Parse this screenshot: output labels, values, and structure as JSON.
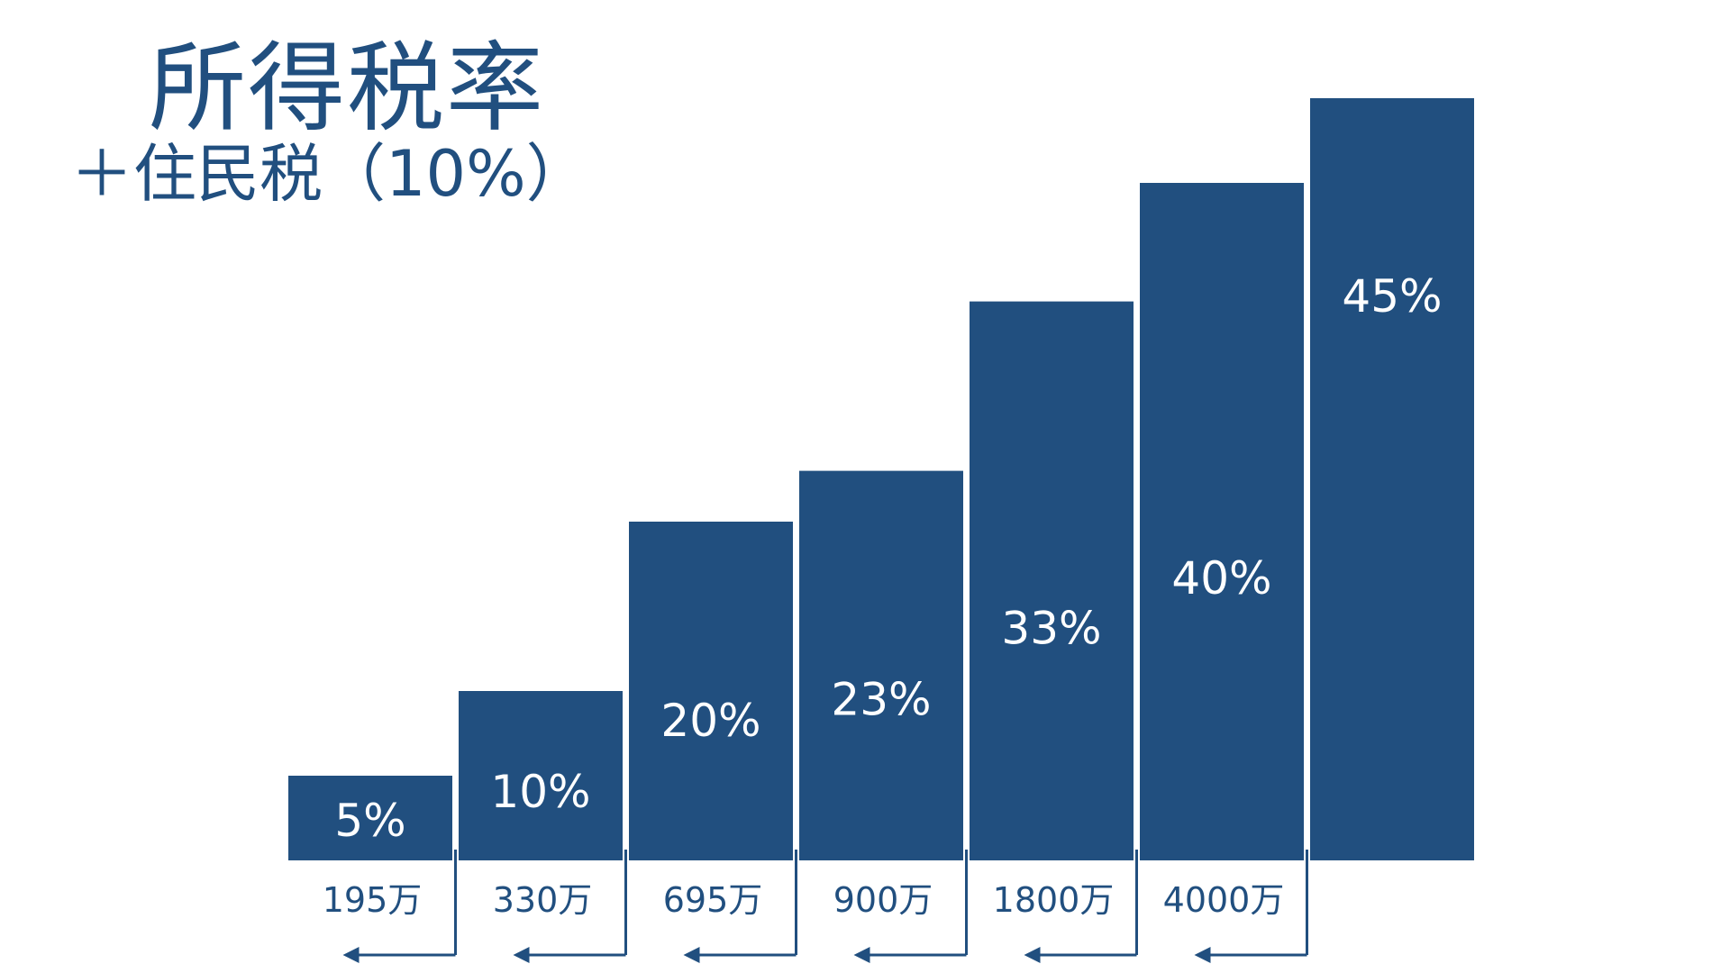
{
  "page": {
    "title": "所得税率",
    "subtitle": "＋住民税（10%）"
  },
  "colors": {
    "bar": "#214f7f",
    "label": "#ffffff",
    "text": "#214f7f",
    "background": "#ffffff"
  },
  "chart_data": {
    "type": "bar",
    "title": "所得税率",
    "subtitle": "＋住民税（10%）",
    "xlabel": "",
    "ylabel": "",
    "ylim": [
      0,
      46
    ],
    "grid": false,
    "legend": "none",
    "categories": [
      "～195万",
      "195万～330万",
      "330万～695万",
      "695万～900万",
      "900万～1800万",
      "1800万～4000万",
      "4000万～"
    ],
    "values": [
      5,
      10,
      20,
      23,
      33,
      40,
      45
    ],
    "value_labels": [
      "5%",
      "10%",
      "20%",
      "23%",
      "33%",
      "40%",
      "45%"
    ],
    "thresholds": [
      "195万",
      "330万",
      "695万",
      "900万",
      "1800万",
      "4000万"
    ]
  }
}
